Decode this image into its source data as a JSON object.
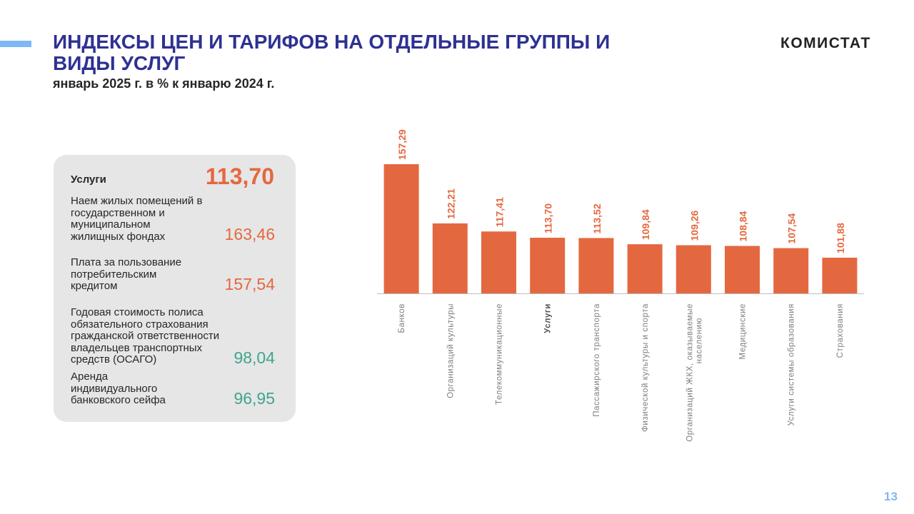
{
  "header": {
    "title": "ИНДЕКСЫ ЦЕН И ТАРИФОВ  НА ОТДЕЛЬНЫЕ  ГРУППЫ И ВИДЫ УСЛУГ",
    "subtitle": "январь 2025 г. в % к январю 2024 г.",
    "logo": "КОМИСТАТ",
    "page_number": "13"
  },
  "panel": {
    "head_label": "Услуги",
    "head_value": "113,70",
    "items": [
      {
        "label": "Наем жилых  помещений в государственном и муниципальном жилищных  фондах",
        "value": "163,46",
        "color": "#e4683f"
      },
      {
        "label": "Плата за пользование потребительским кредитом",
        "value": "157,54",
        "color": "#e4683f"
      },
      {
        "label": "Годовая стоимость полиса обязательного страхования гражданской ответственности владельцев транспортных средств (ОСАГО)",
        "value": "98,04",
        "color": "#3fa58f"
      },
      {
        "label": "Аренда индивидуального банковского сейфа",
        "value": "96,95",
        "color": "#3fa58f"
      }
    ]
  },
  "chart_data": {
    "type": "bar",
    "title": "",
    "xlabel": "",
    "ylabel": "",
    "ylim": [
      80,
      160
    ],
    "grid": false,
    "bar_color": "#e4683f",
    "categories": [
      "Банков",
      "Организаций  культуры",
      "Телекоммуникационные",
      "Услуги",
      "Пассажирского транспорта",
      "Физической культуры и спорта",
      "Организаций ЖКХ,  оказываемые населению",
      "Медицинские",
      "Услуги системы образования",
      "Страхования"
    ],
    "values": [
      157.29,
      122.21,
      117.41,
      113.7,
      113.52,
      109.84,
      109.26,
      108.84,
      107.54,
      101.88
    ],
    "value_labels": [
      "157,29",
      "122,21",
      "117,41",
      "113,70",
      "113,52",
      "109,84",
      "109,26",
      "108,84",
      "107,54",
      "101,88"
    ],
    "bold_category": "Услуги"
  }
}
